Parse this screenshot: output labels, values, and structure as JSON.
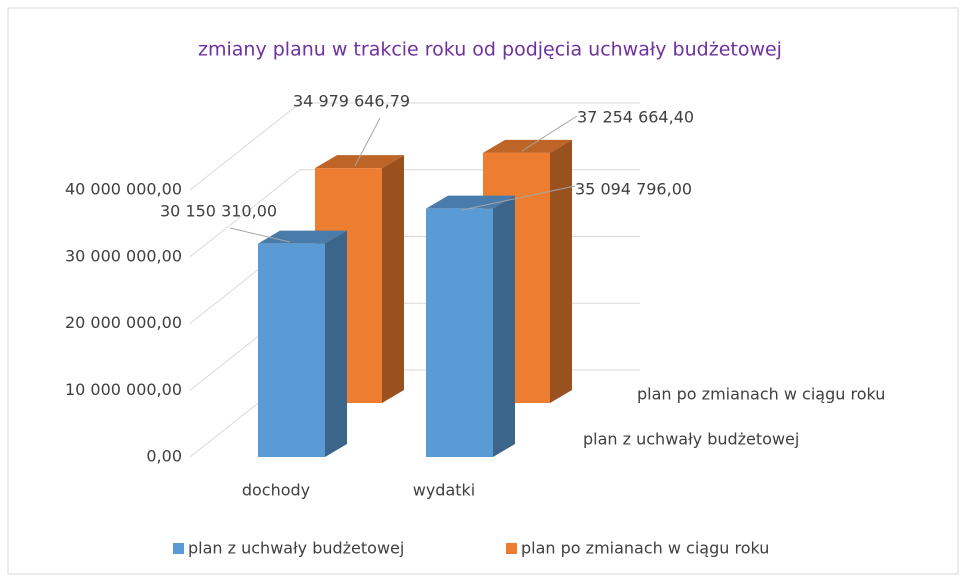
{
  "chart_data": {
    "type": "bar3d",
    "title": "zmiany planu w trakcie roku od podjęcia uchwały budżetowej",
    "categories": [
      "dochody",
      "wydatki"
    ],
    "series": [
      {
        "name": "plan z uchwały budżetowej",
        "color": "#5b9bd5",
        "values": [
          30150310,
          35094796
        ],
        "value_labels": [
          "30 150 310,00",
          "35 094 796,00"
        ]
      },
      {
        "name": "plan po zmianach w ciągu roku",
        "color": "#ed7d31",
        "values": [
          34979646.79,
          37254664.4
        ],
        "value_labels": [
          "34 979 646,79",
          "37 254 664,40"
        ]
      }
    ],
    "ylim": [
      0,
      40000000
    ],
    "yticks": [
      {
        "value": 0,
        "label": "0,00"
      },
      {
        "value": 10000000,
        "label": "10 000 000,00"
      },
      {
        "value": 20000000,
        "label": "20 000 000,00"
      },
      {
        "value": 30000000,
        "label": "30 000 000,00"
      },
      {
        "value": 40000000,
        "label": "40 000 000,00"
      }
    ],
    "grid": true,
    "legend": "bottom"
  }
}
